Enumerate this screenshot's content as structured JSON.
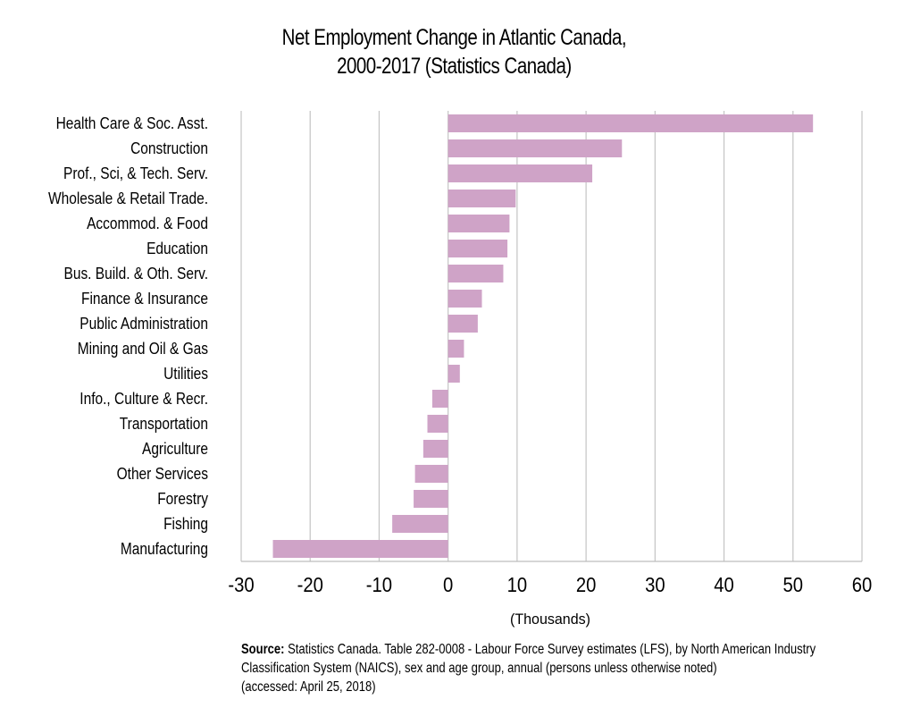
{
  "chart_data": {
    "type": "bar",
    "orientation": "horizontal",
    "title_lines": [
      "Net Employment Change in Atlantic Canada,",
      "2000-2017 (Statistics Canada)"
    ],
    "xlabel": "(Thousands)",
    "ylabel": "",
    "xlim": [
      -30,
      60
    ],
    "xticks": [
      "-30",
      "-20",
      "-10",
      "0",
      "10",
      "20",
      "30",
      "40",
      "50",
      "60"
    ],
    "grid": "vertical",
    "bar_color": "#cfa3c7",
    "categories": [
      "Health Care & Soc. Asst.",
      "Construction",
      "Prof., Sci, & Tech. Serv.",
      "Wholesale & Retail Trade.",
      "Accommod. & Food",
      "Education",
      "Bus. Build. & Oth. Serv.",
      "Finance & Insurance",
      "Public Administration",
      "Mining and Oil & Gas",
      "Utilities",
      "Info., Culture & Recr.",
      "Transportation",
      "Agriculture",
      "Other Services",
      "Forestry",
      "Fishing",
      "Manufacturing"
    ],
    "values": [
      52.9,
      25.2,
      20.9,
      9.8,
      8.9,
      8.6,
      8.0,
      4.9,
      4.3,
      2.3,
      1.7,
      -2.3,
      -3.0,
      -3.6,
      -4.8,
      -5.0,
      -8.1,
      -25.4
    ]
  },
  "source": {
    "label": "Source:",
    "line1": " Statistics Canada. Table 282-0008 - Labour Force Survey estimates (LFS), by North American Industry",
    "line2": "Classification System (NAICS), sex and age group, annual (persons unless otherwise noted)",
    "line3": "(accessed: April 25, 2018)"
  }
}
